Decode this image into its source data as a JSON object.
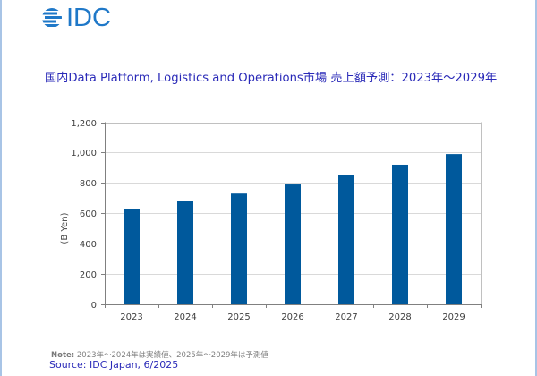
{
  "logo": {
    "text": "IDC",
    "icon": "globe-stripes-icon",
    "color": "#1f78c8"
  },
  "title": "国内Data Platform, Logistics and Operations市場 売上額予測：2023年～2029年",
  "note": {
    "label": "Note:",
    "text": " 2023年～2024年は実績値、2025年～2029年は予測値"
  },
  "source": "Source: IDC Japan, 6/2025",
  "colors": {
    "bar": "#00599c",
    "gridline": "#d9d9d9",
    "axis": "#808080",
    "title": "#2a2ab8"
  },
  "chart_data": {
    "type": "bar",
    "title": "国内Data Platform, Logistics and Operations市場 売上額予測：2023年～2029年",
    "xlabel": "",
    "ylabel": "(B Yen)",
    "categories": [
      "2023",
      "2024",
      "2025",
      "2026",
      "2027",
      "2028",
      "2029"
    ],
    "values": [
      630,
      680,
      730,
      790,
      850,
      920,
      990
    ],
    "ylim": [
      0,
      1200
    ],
    "yticks": [
      0,
      200,
      400,
      600,
      800,
      1000,
      1200
    ],
    "ytick_labels": [
      "0",
      "200",
      "400",
      "600",
      "800",
      "1,000",
      "1,200"
    ],
    "grid": true,
    "legend": "none"
  }
}
